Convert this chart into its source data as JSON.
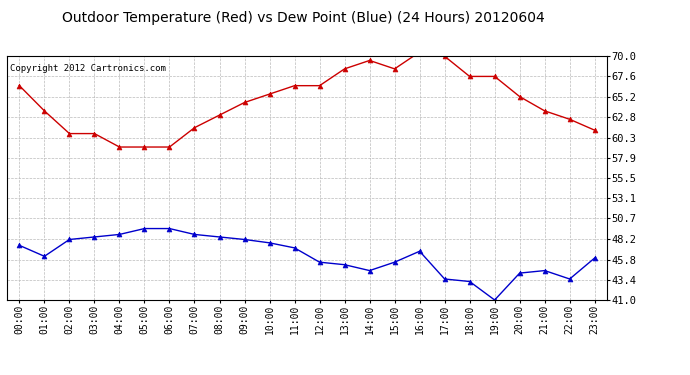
{
  "title": "Outdoor Temperature (Red) vs Dew Point (Blue) (24 Hours) 20120604",
  "copyright_text": "Copyright 2012 Cartronics.com",
  "x_labels": [
    "00:00",
    "01:00",
    "02:00",
    "03:00",
    "04:00",
    "05:00",
    "06:00",
    "07:00",
    "08:00",
    "09:00",
    "10:00",
    "11:00",
    "12:00",
    "13:00",
    "14:00",
    "15:00",
    "16:00",
    "17:00",
    "18:00",
    "19:00",
    "20:00",
    "21:00",
    "22:00",
    "23:00"
  ],
  "temp_red": [
    66.5,
    63.5,
    60.8,
    60.8,
    59.2,
    59.2,
    59.2,
    61.5,
    63.0,
    64.5,
    65.5,
    66.5,
    66.5,
    68.5,
    69.5,
    68.5,
    70.5,
    70.0,
    67.6,
    67.6,
    65.2,
    63.5,
    62.5,
    61.2
  ],
  "dew_blue": [
    47.5,
    46.2,
    48.2,
    48.5,
    48.8,
    49.5,
    49.5,
    48.8,
    48.5,
    48.2,
    47.8,
    47.2,
    45.5,
    45.2,
    44.5,
    45.5,
    46.8,
    43.5,
    43.2,
    41.0,
    44.2,
    44.5,
    43.5,
    46.0
  ],
  "y_ticks": [
    41.0,
    43.4,
    45.8,
    48.2,
    50.7,
    53.1,
    55.5,
    57.9,
    60.3,
    62.8,
    65.2,
    67.6,
    70.0
  ],
  "ylim": [
    41.0,
    70.0
  ],
  "bg_color": "#ffffff",
  "plot_bg_color": "#ffffff",
  "grid_color": "#bbbbbb",
  "red_color": "#cc0000",
  "blue_color": "#0000cc",
  "title_fontsize": 10,
  "copyright_fontsize": 6.5,
  "tick_fontsize": 7,
  "ytick_fontsize": 7.5
}
